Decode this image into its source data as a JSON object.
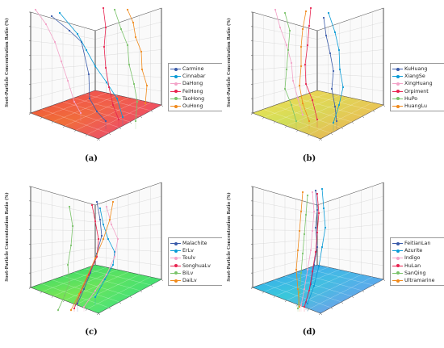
{
  "y_axis_title": "Soot-Particle Concentration Ratio (%)",
  "chart_data": [
    {
      "panel": "(a)",
      "type": "line",
      "floor_colors": [
        "#f0522d",
        "#e63c8c",
        "#f07a2a",
        "#f2436e"
      ],
      "series": [
        {
          "name": "Carmine",
          "color": "#3a5ba9"
        },
        {
          "name": "Cinnabar",
          "color": "#0a9bd6"
        },
        {
          "name": "DaHong",
          "color": "#f3a3c8"
        },
        {
          "name": "FeiHong",
          "color": "#e8234f"
        },
        {
          "name": "TaoHong",
          "color": "#7ac36a"
        },
        {
          "name": "OuHong",
          "color": "#f08a1c"
        }
      ]
    },
    {
      "panel": "(b)",
      "type": "line",
      "floor_colors": [
        "#f5ea53",
        "#f79a52",
        "#c8e65a",
        "#f6c153"
      ],
      "series": [
        {
          "name": "KuHuang",
          "color": "#3a5ba9"
        },
        {
          "name": "XiangSe",
          "color": "#0a9bd6"
        },
        {
          "name": "XingHuang",
          "color": "#f3a3c8"
        },
        {
          "name": "Orpiment",
          "color": "#e8234f"
        },
        {
          "name": "HuPo",
          "color": "#7ac36a"
        },
        {
          "name": "HuangLu",
          "color": "#f08a1c"
        }
      ]
    },
    {
      "panel": "(c)",
      "type": "line",
      "floor_colors": [
        "#34d66a",
        "#2fe39a",
        "#8de84a",
        "#2bdc78"
      ],
      "series": [
        {
          "name": "Malachite",
          "color": "#3a5ba9"
        },
        {
          "name": "ErLv",
          "color": "#0a9bd6"
        },
        {
          "name": "Toulv",
          "color": "#f3a3c8"
        },
        {
          "name": "SonghuaLv",
          "color": "#e8234f"
        },
        {
          "name": "BiLv",
          "color": "#7ac36a"
        },
        {
          "name": "DaiLv",
          "color": "#f08a1c"
        }
      ]
    },
    {
      "panel": "(d)",
      "type": "line",
      "floor_colors": [
        "#2aa8f0",
        "#9a86f2",
        "#31d3d3",
        "#5aa0f5"
      ],
      "series": [
        {
          "name": "FeitianLan",
          "color": "#3a5ba9"
        },
        {
          "name": "Azurite",
          "color": "#0a9bd6"
        },
        {
          "name": "Indigo",
          "color": "#f3a3c8"
        },
        {
          "name": "HuLan",
          "color": "#e8234f"
        },
        {
          "name": "SanQing",
          "color": "#7ac36a"
        },
        {
          "name": "Ultramarine",
          "color": "#f08a1c"
        }
      ]
    }
  ]
}
